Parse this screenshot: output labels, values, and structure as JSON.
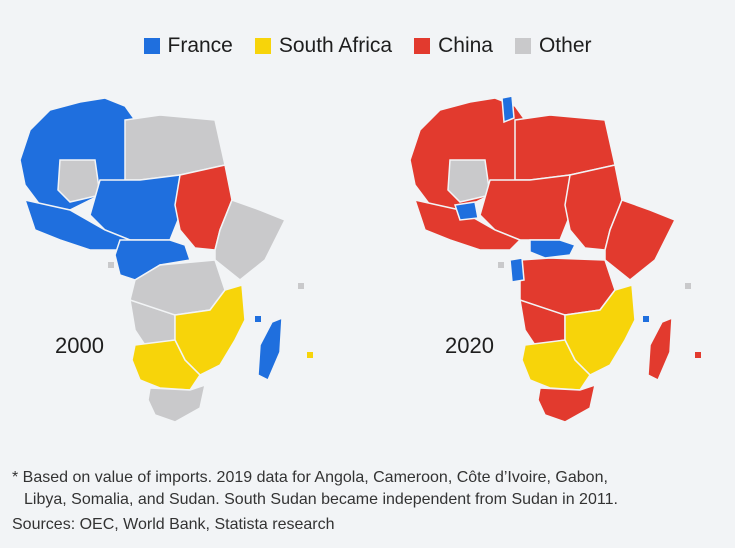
{
  "legend": [
    {
      "label": "France",
      "color": "#1f6fde"
    },
    {
      "label": "South Africa",
      "color": "#f7d40a"
    },
    {
      "label": "China",
      "color": "#e23a2e"
    },
    {
      "label": "Other",
      "color": "#c9c9cb"
    }
  ],
  "maps": [
    {
      "year": "2000"
    },
    {
      "year": "2020"
    }
  ],
  "footnote": {
    "line1": "* Based on value of imports. 2019 data for Angola, Cameroon, Côte d’Ivoire, Gabon,",
    "line2": "Libya, Somalia, and Sudan. South Sudan became independent from Sudan in 2011."
  },
  "sources": "Sources: OEC, World Bank, Statista research"
}
